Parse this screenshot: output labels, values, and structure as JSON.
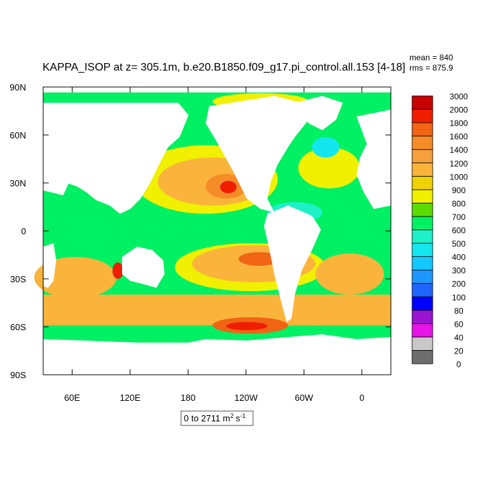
{
  "title": "KAPPA_ISOP at z= 305.1m, b.e20.B1850.f09_g17.pi_control.all.153 [4-18]",
  "stats": {
    "mean": "mean = 840",
    "rms": "rms = 875.9"
  },
  "map": {
    "lonlim": [
      30,
      390
    ],
    "latlim": [
      -90,
      90
    ],
    "xticks": [
      {
        "value": 60,
        "label": "60E"
      },
      {
        "value": 120,
        "label": "120E"
      },
      180,
      {
        "value": -120,
        "label": "120W"
      },
      {
        "value": -60,
        "label": "60W"
      },
      0
    ],
    "yticks": [
      {
        "value": 90,
        "label": "90N"
      },
      {
        "value": 60,
        "label": "60N"
      },
      {
        "value": 30,
        "label": "30N"
      },
      0,
      {
        "value": -30,
        "label": "30S"
      },
      {
        "value": -60,
        "label": "60S"
      },
      {
        "value": -90,
        "label": "90S"
      }
    ]
  },
  "colorbar": {
    "levels": [
      0,
      20,
      40,
      60,
      80,
      100,
      200,
      300,
      400,
      500,
      600,
      700,
      800,
      900,
      1000,
      1200,
      1400,
      1600,
      1800,
      2000,
      3000
    ],
    "colors": [
      "#6e6e6e",
      "#c8c8c8",
      "#e614e6",
      "#9b14d2",
      "#0000ff",
      "#1e64ff",
      "#1e96ff",
      "#14c8ff",
      "#14e6f0",
      "#1ef0c8",
      "#00f064",
      "#5adc00",
      "#f0f000",
      "#f0d200",
      "#fab43c",
      "#f5a03c",
      "#f58c28",
      "#f06414",
      "#f01e00",
      "#c80000"
    ]
  },
  "range_label": {
    "main": "0 to 2711 m",
    "m_exp": "2",
    "unit": "s",
    "s_exp": "-1"
  }
}
